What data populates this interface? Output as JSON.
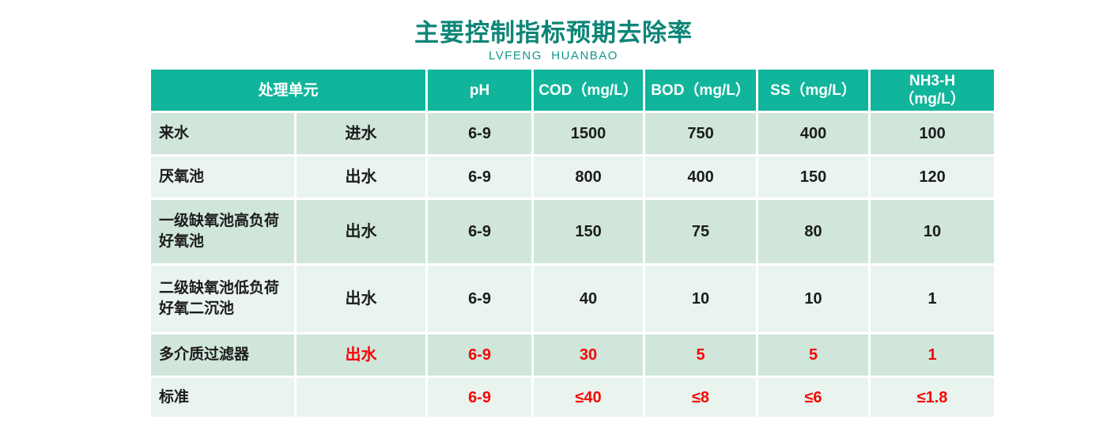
{
  "title": "主要控制指标预期去除率",
  "subtitle": "LVFENG  HUANBAO",
  "colors": {
    "header_bg": "#11b59b",
    "header_text": "#ffffff",
    "row_dark": "#d0e6da",
    "row_light": "#e9f4ee",
    "title_color": "#0c8577",
    "subtitle_color": "#11978a",
    "red": "#f70505",
    "body_text": "#1c1c1c"
  },
  "table": {
    "header": {
      "unit": "处理单元",
      "ph": "pH",
      "cod": "COD（mg/L）",
      "bod": "BOD（mg/L）",
      "ss": "SS（mg/L）",
      "nh3_line1": "NH3-H",
      "nh3_line2": "（mg/L）"
    },
    "rows": [
      {
        "name": "来水",
        "flow": "进水",
        "ph": "6-9",
        "cod": "1500",
        "bod": "750",
        "ss": "400",
        "nh3": "100"
      },
      {
        "name": "厌氧池",
        "flow": "出水",
        "ph": "6-9",
        "cod": "800",
        "bod": "400",
        "ss": "150",
        "nh3": "120"
      },
      {
        "name": "一级缺氧池高负荷好氧池",
        "flow": "出水",
        "ph": "6-9",
        "cod": "150",
        "bod": "75",
        "ss": "80",
        "nh3": "10"
      },
      {
        "name": "二级缺氧池低负荷好氧二沉池",
        "flow": "出水",
        "ph": "6-9",
        "cod": "40",
        "bod": "10",
        "ss": "10",
        "nh3": "1"
      },
      {
        "name": "多介质过滤器",
        "flow": "出水",
        "ph": "6-9",
        "cod": "30",
        "bod": "5",
        "ss": "5",
        "nh3": "1"
      },
      {
        "name": "标准",
        "flow": "",
        "ph": "6-9",
        "cod": "≤40",
        "bod": "≤8",
        "ss": "≤6",
        "nh3": "≤1.8"
      }
    ]
  },
  "chart_data": {
    "type": "table",
    "title": "主要控制指标预期去除率",
    "subtitle": "LVFENG HUANBAO",
    "columns": [
      "处理单元",
      "进水/出水",
      "pH",
      "COD（mg/L）",
      "BOD（mg/L）",
      "SS（mg/L）",
      "NH3-H（mg/L）"
    ],
    "rows": [
      [
        "来水",
        "进水",
        "6-9",
        1500,
        750,
        400,
        100
      ],
      [
        "厌氧池",
        "出水",
        "6-9",
        800,
        400,
        150,
        120
      ],
      [
        "一级缺氧池高负荷好氧池",
        "出水",
        "6-9",
        150,
        75,
        80,
        10
      ],
      [
        "二级缺氧池低负荷好氧二沉池",
        "出水",
        "6-9",
        40,
        10,
        10,
        1
      ],
      [
        "多介质过滤器",
        "出水",
        "6-9",
        30,
        5,
        5,
        1
      ],
      [
        "标准",
        "",
        "6-9",
        "≤40",
        "≤8",
        "≤6",
        "≤1.8"
      ]
    ],
    "notes": "Rows 5 and 6 values rendered in red; header row teal; body rows alternate two light-green shades"
  }
}
